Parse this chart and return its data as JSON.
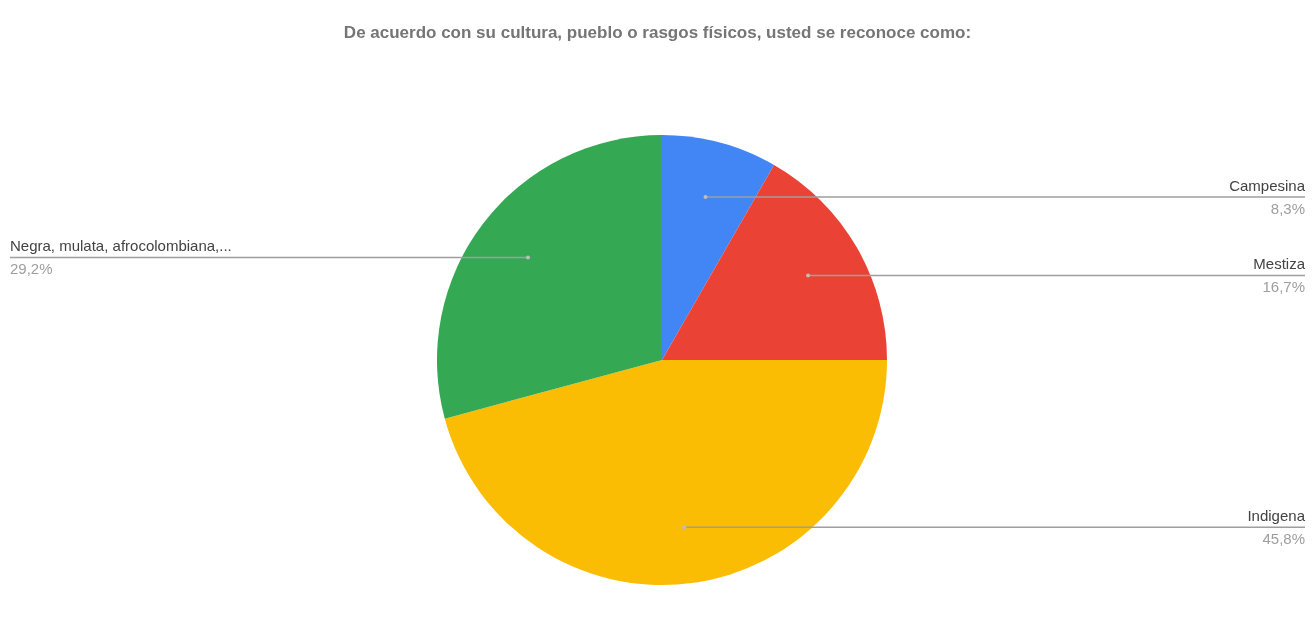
{
  "chart_data": {
    "type": "pie",
    "title": "De acuerdo con su cultura, pueblo o rasgos físicos, usted se reconoce como:",
    "categories": [
      "Campesina",
      "Mestiza",
      "Indigena",
      "Negra, mulata, afrocolombiana,..."
    ],
    "values": [
      8.3,
      16.7,
      45.8,
      29.2
    ],
    "colors": [
      "#4285f4",
      "#ea4335",
      "#fbbc04",
      "#34a853"
    ],
    "value_labels": [
      "8,3%",
      "16,7%",
      "45,8%",
      "29,2%"
    ],
    "legend": false
  }
}
